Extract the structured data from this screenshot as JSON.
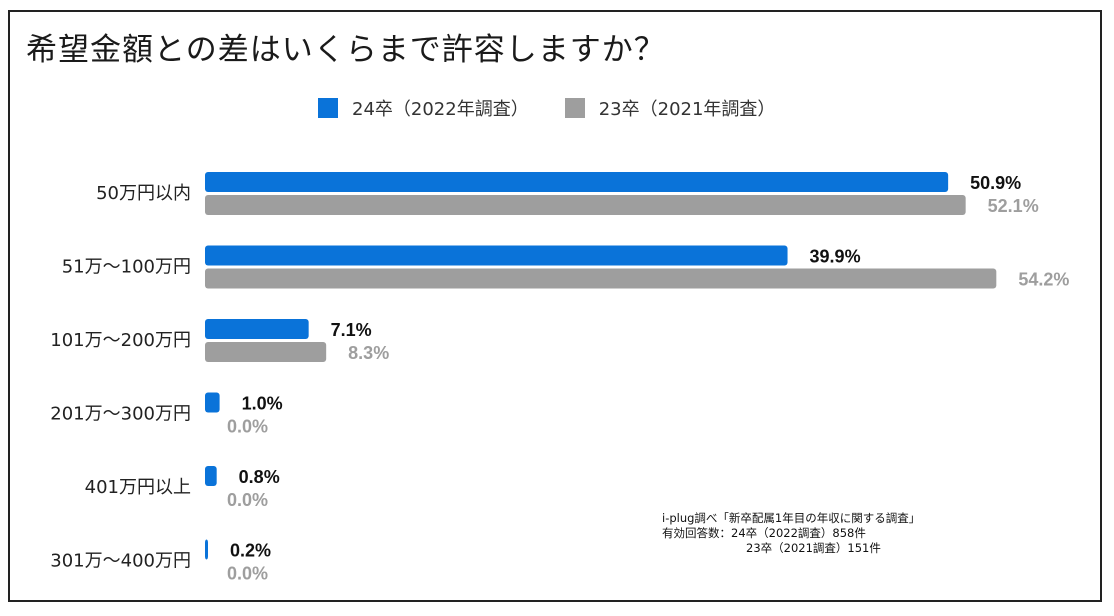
{
  "chart_data": {
    "type": "bar",
    "orientation": "horizontal",
    "title": "希望金額との差はいくらまで許容しますか？",
    "categories": [
      "50万円以内",
      "51万～100万円",
      "101万～200万円",
      "201万～300万円",
      "401万円以上",
      "301万～400万円"
    ],
    "series": [
      {
        "name": "24卒（2022年調査）",
        "color": "#0a73d9",
        "label_color": "#111111",
        "values": [
          50.9,
          39.9,
          7.1,
          1.0,
          0.8,
          0.2
        ],
        "labels": [
          "50.9%",
          "39.9%",
          "7.1%",
          "1.0%",
          "0.8%",
          "0.2%"
        ]
      },
      {
        "name": "23卒（2021年調査）",
        "color": "#9e9e9e",
        "label_color": "#9e9e9e",
        "values": [
          52.1,
          54.2,
          8.3,
          0.0,
          0.0,
          0.0
        ],
        "labels": [
          "52.1%",
          "54.2%",
          "8.3%",
          "0.0%",
          "0.0%",
          "0.0%"
        ]
      }
    ],
    "xlim": [
      0,
      60
    ],
    "grid": false,
    "legend_position": "top"
  },
  "source_note": {
    "line1": "i-plug調べ「新卒配属1年目の年収に関する調査」",
    "line2": "有効回答数：24卒（2022調査）858件",
    "line3": "23卒（2021調査）151件"
  }
}
